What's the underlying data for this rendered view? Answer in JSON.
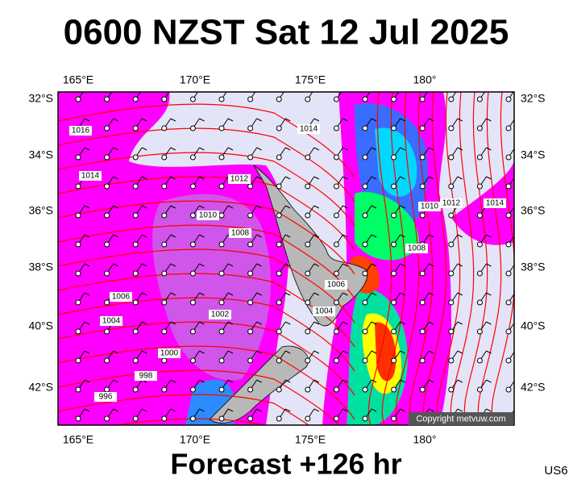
{
  "header": {
    "title": "0600 NZST Sat 12 Jul 2025"
  },
  "footer": {
    "forecast": "Forecast +126 hr",
    "code": "US6",
    "copyright": "Copyright metvuw.com"
  },
  "axes": {
    "top": [
      "165°E",
      "170°E",
      "175°E",
      "180°"
    ],
    "bottom": [
      "165°E",
      "170°E",
      "175°E",
      "180°"
    ],
    "left": [
      "32°S",
      "34°S",
      "36°S",
      "38°S",
      "40°S",
      "42°S"
    ],
    "right": [
      "32°S",
      "34°S",
      "36°S",
      "38°S",
      "40°S",
      "42°S"
    ]
  },
  "isobar_labels": [
    "1016",
    "1014",
    "1012",
    "1010",
    "1008",
    "1006",
    "1004",
    "1002",
    "1000",
    "998",
    "996",
    "1014",
    "1010",
    "1012",
    "1014",
    "1008",
    "1006",
    "1004"
  ]
}
